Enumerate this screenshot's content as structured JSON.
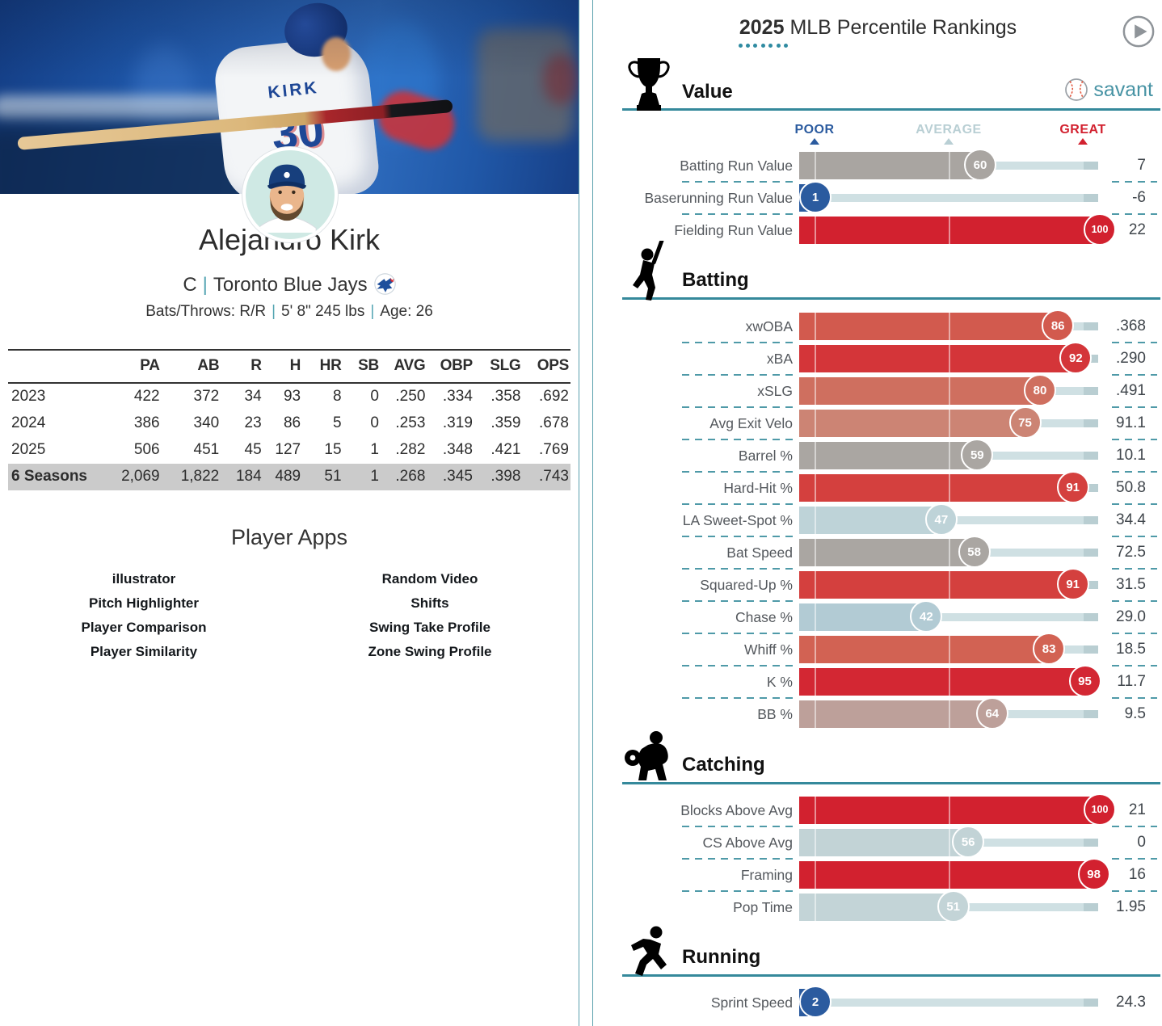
{
  "player": {
    "name": "Alejandro Kirk",
    "position": "C",
    "team": "Toronto Blue Jays",
    "bats_throws": "Bats/Throws: R/R",
    "height_weight": "5' 8\" 245 lbs",
    "age": "Age: 26",
    "separator": "|",
    "jersey_name": "KIRK",
    "jersey_number": "30"
  },
  "stats_table": {
    "columns": [
      "",
      "PA",
      "AB",
      "R",
      "H",
      "HR",
      "SB",
      "AVG",
      "OBP",
      "SLG",
      "OPS"
    ],
    "rows": [
      {
        "label": "2023",
        "highlight": false,
        "values": [
          "422",
          "372",
          "34",
          "93",
          "8",
          "0",
          ".250",
          ".334",
          ".358",
          ".692"
        ]
      },
      {
        "label": "2024",
        "highlight": false,
        "values": [
          "386",
          "340",
          "23",
          "86",
          "5",
          "0",
          ".253",
          ".319",
          ".359",
          ".678"
        ]
      },
      {
        "label": "2025",
        "highlight": false,
        "values": [
          "506",
          "451",
          "45",
          "127",
          "15",
          "1",
          ".282",
          ".348",
          ".421",
          ".769"
        ]
      },
      {
        "label": "6 Seasons",
        "highlight": true,
        "values": [
          "2,069",
          "1,822",
          "184",
          "489",
          "51",
          "1",
          ".268",
          ".345",
          ".398",
          ".743"
        ]
      }
    ]
  },
  "player_apps": {
    "title": "Player Apps",
    "left": [
      "illustrator",
      "Pitch Highlighter",
      "Player Comparison",
      "Player Similarity"
    ],
    "right": [
      "Random Video",
      "Shifts",
      "Swing Take Profile",
      "Zone Swing Profile"
    ]
  },
  "rankings": {
    "year": "2025",
    "title": "MLB Percentile Rankings",
    "brand": "savant",
    "scale": {
      "poor": "POOR",
      "average": "AVERAGE",
      "great": "GREAT",
      "poor_color": "#2b5b9f",
      "average_color": "#b9cfd4",
      "great_color": "#d2212f"
    },
    "sections": [
      {
        "title": "Value",
        "icon": "trophy-icon",
        "rows": [
          {
            "label": "Batting Run Value",
            "pct": 60,
            "value": "7",
            "color": "#a9a5a1"
          },
          {
            "label": "Baserunning Run Value",
            "pct": 1,
            "value": "-6",
            "color": "#2b5b9f"
          },
          {
            "label": "Fielding Run Value",
            "pct": 100,
            "value": "22",
            "color": "#d2212f"
          }
        ]
      },
      {
        "title": "Batting",
        "icon": "batter-icon",
        "rows": [
          {
            "label": "xwOBA",
            "pct": 86,
            "value": ".368",
            "color": "#d25a4e"
          },
          {
            "label": "xBA",
            "pct": 92,
            "value": ".290",
            "color": "#d43539"
          },
          {
            "label": "xSLG",
            "pct": 80,
            "value": ".491",
            "color": "#cf6f5f"
          },
          {
            "label": "Avg Exit Velo",
            "pct": 75,
            "value": "91.1",
            "color": "#cc8474"
          },
          {
            "label": "Barrel %",
            "pct": 59,
            "value": "10.1",
            "color": "#aaa6a2"
          },
          {
            "label": "Hard-Hit %",
            "pct": 91,
            "value": "50.8",
            "color": "#d4403e"
          },
          {
            "label": "LA Sweet-Spot %",
            "pct": 47,
            "value": "34.4",
            "color": "#bed3d8"
          },
          {
            "label": "Bat Speed",
            "pct": 58,
            "value": "72.5",
            "color": "#aaa6a2"
          },
          {
            "label": "Squared-Up %",
            "pct": 91,
            "value": "31.5",
            "color": "#d4403e"
          },
          {
            "label": "Chase %",
            "pct": 42,
            "value": "29.0",
            "color": "#b2cbd4"
          },
          {
            "label": "Whiff %",
            "pct": 83,
            "value": "18.5",
            "color": "#d26253"
          },
          {
            "label": "K %",
            "pct": 95,
            "value": "11.7",
            "color": "#d32733"
          },
          {
            "label": "BB %",
            "pct": 64,
            "value": "9.5",
            "color": "#bda09a"
          }
        ]
      },
      {
        "title": "Catching",
        "icon": "catcher-icon",
        "rows": [
          {
            "label": "Blocks Above Avg",
            "pct": 100,
            "value": "21",
            "color": "#d2212f"
          },
          {
            "label": "CS Above Avg",
            "pct": 56,
            "value": "0",
            "color": "#c2d3d6"
          },
          {
            "label": "Framing",
            "pct": 98,
            "value": "16",
            "color": "#d2212f"
          },
          {
            "label": "Pop Time",
            "pct": 51,
            "value": "1.95",
            "color": "#c3d4d7"
          }
        ]
      },
      {
        "title": "Running",
        "icon": "runner-icon",
        "rows": [
          {
            "label": "Sprint Speed",
            "pct": 2,
            "value": "24.3",
            "color": "#2b5b9f"
          }
        ]
      }
    ]
  }
}
